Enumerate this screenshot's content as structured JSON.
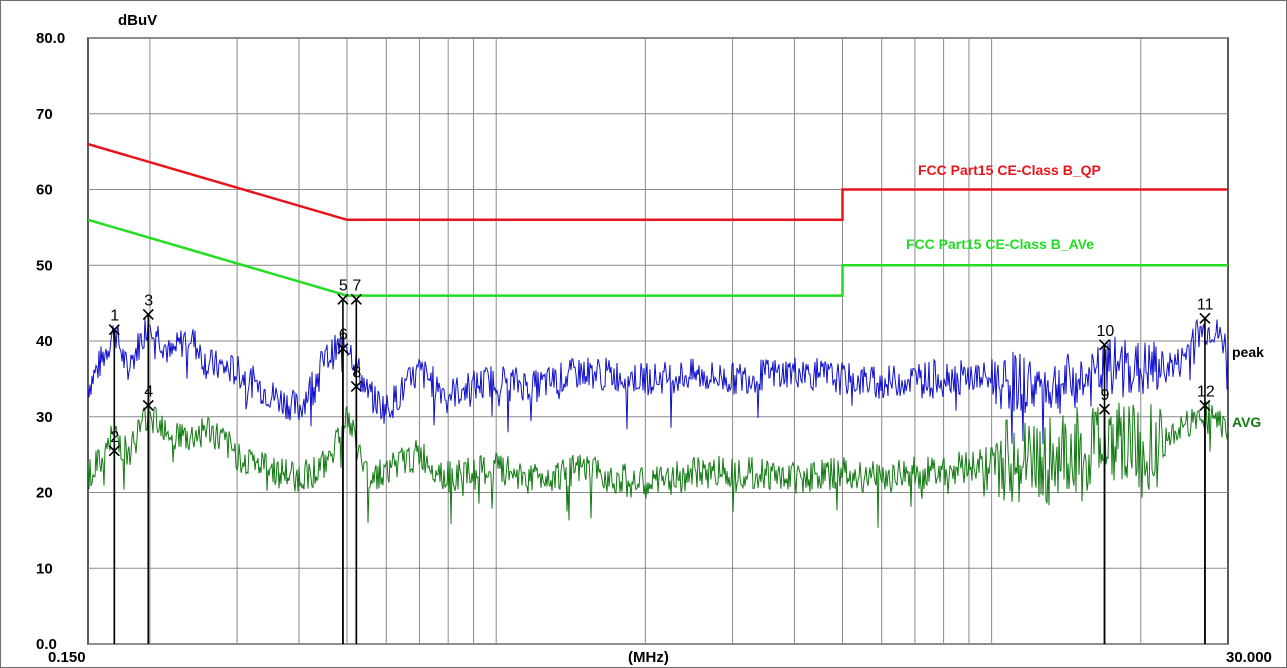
{
  "chart_data": {
    "type": "line",
    "title": "",
    "ylabel": "dBuV",
    "xlabel": "(MHz)",
    "x_scale": "log",
    "xlim": [
      0.15,
      30.0
    ],
    "ylim": [
      0.0,
      80.0
    ],
    "y_ticks": [
      0,
      10,
      20,
      30,
      40,
      50,
      60,
      70,
      80
    ],
    "y_tick_labels": [
      "0.0",
      "10",
      "20",
      "30",
      "40",
      "50",
      "60",
      "70",
      "80.0"
    ],
    "x_tick_labels": [
      "0.150",
      "30.000"
    ],
    "grid": true,
    "limit_lines": [
      {
        "name": "FCC Part15 CE-Class B_QP",
        "color": "#e8141b",
        "points": [
          [
            0.15,
            66.0
          ],
          [
            0.5,
            56.0
          ],
          [
            5.0,
            56.0
          ],
          [
            5.0,
            60.0
          ],
          [
            30.0,
            60.0
          ]
        ]
      },
      {
        "name": "FCC Part15 CE-Class B_AVe",
        "color": "#22dd22",
        "points": [
          [
            0.15,
            56.0
          ],
          [
            0.5,
            46.0
          ],
          [
            5.0,
            46.0
          ],
          [
            5.0,
            50.0
          ],
          [
            30.0,
            50.0
          ]
        ]
      }
    ],
    "series": [
      {
        "name": "peak",
        "color": "#1010cc",
        "x": [
          0.15,
          0.16,
          0.17,
          0.18,
          0.2,
          0.22,
          0.24,
          0.26,
          0.3,
          0.35,
          0.4,
          0.45,
          0.5,
          0.55,
          0.6,
          0.7,
          0.8,
          1.0,
          1.2,
          1.5,
          2.0,
          2.5,
          3.0,
          4.0,
          5.0,
          6.0,
          8.0,
          10.0,
          13.0,
          16.0,
          18.0,
          20.0,
          24.0,
          26.0,
          28.0,
          30.0
        ],
        "y": [
          34.0,
          37.5,
          41.5,
          36.0,
          43.0,
          38.0,
          41.0,
          37.0,
          36.0,
          33.0,
          31.0,
          37.5,
          40.0,
          33.0,
          31.0,
          36.0,
          33.0,
          35.0,
          34.0,
          36.0,
          35.0,
          35.5,
          35.0,
          36.0,
          35.0,
          34.5,
          35.5,
          35.0,
          34.0,
          35.0,
          37.0,
          36.0,
          37.0,
          41.0,
          41.5,
          39.0
        ]
      },
      {
        "name": "AVG",
        "color": "#127a12",
        "x": [
          0.15,
          0.16,
          0.17,
          0.18,
          0.2,
          0.22,
          0.24,
          0.26,
          0.3,
          0.35,
          0.4,
          0.45,
          0.5,
          0.55,
          0.6,
          0.7,
          0.8,
          1.0,
          1.2,
          1.5,
          2.0,
          2.5,
          3.0,
          4.0,
          5.0,
          6.0,
          8.0,
          10.0,
          13.0,
          16.0,
          18.0,
          20.0,
          24.0,
          26.0,
          28.0,
          30.0
        ],
        "y": [
          22.5,
          24.0,
          28.0,
          25.0,
          31.0,
          28.0,
          27.0,
          28.5,
          25.0,
          23.0,
          22.0,
          23.5,
          30.0,
          22.0,
          23.0,
          25.0,
          22.0,
          23.0,
          22.0,
          23.0,
          21.0,
          22.5,
          23.0,
          22.0,
          22.5,
          22.0,
          23.0,
          24.0,
          24.0,
          26.0,
          28.0,
          25.0,
          28.0,
          30.0,
          31.0,
          28.0
        ]
      }
    ],
    "markers": [
      {
        "label": "1",
        "x": 0.1695,
        "y": 41.5
      },
      {
        "label": "2",
        "x": 0.1695,
        "y": 25.5
      },
      {
        "label": "3",
        "x": 0.1985,
        "y": 43.5
      },
      {
        "label": "4",
        "x": 0.1985,
        "y": 31.5
      },
      {
        "label": "5",
        "x": 0.4905,
        "y": 45.5
      },
      {
        "label": "6",
        "x": 0.4905,
        "y": 39.0
      },
      {
        "label": "7",
        "x": 0.522,
        "y": 45.5
      },
      {
        "label": "8",
        "x": 0.522,
        "y": 34.0
      },
      {
        "label": "9",
        "x": 16.9,
        "y": 31.0
      },
      {
        "label": "10",
        "x": 16.9,
        "y": 39.5
      },
      {
        "label": "11",
        "x": 26.95,
        "y": 43.0
      },
      {
        "label": "12",
        "x": 26.95,
        "y": 31.5
      }
    ]
  }
}
